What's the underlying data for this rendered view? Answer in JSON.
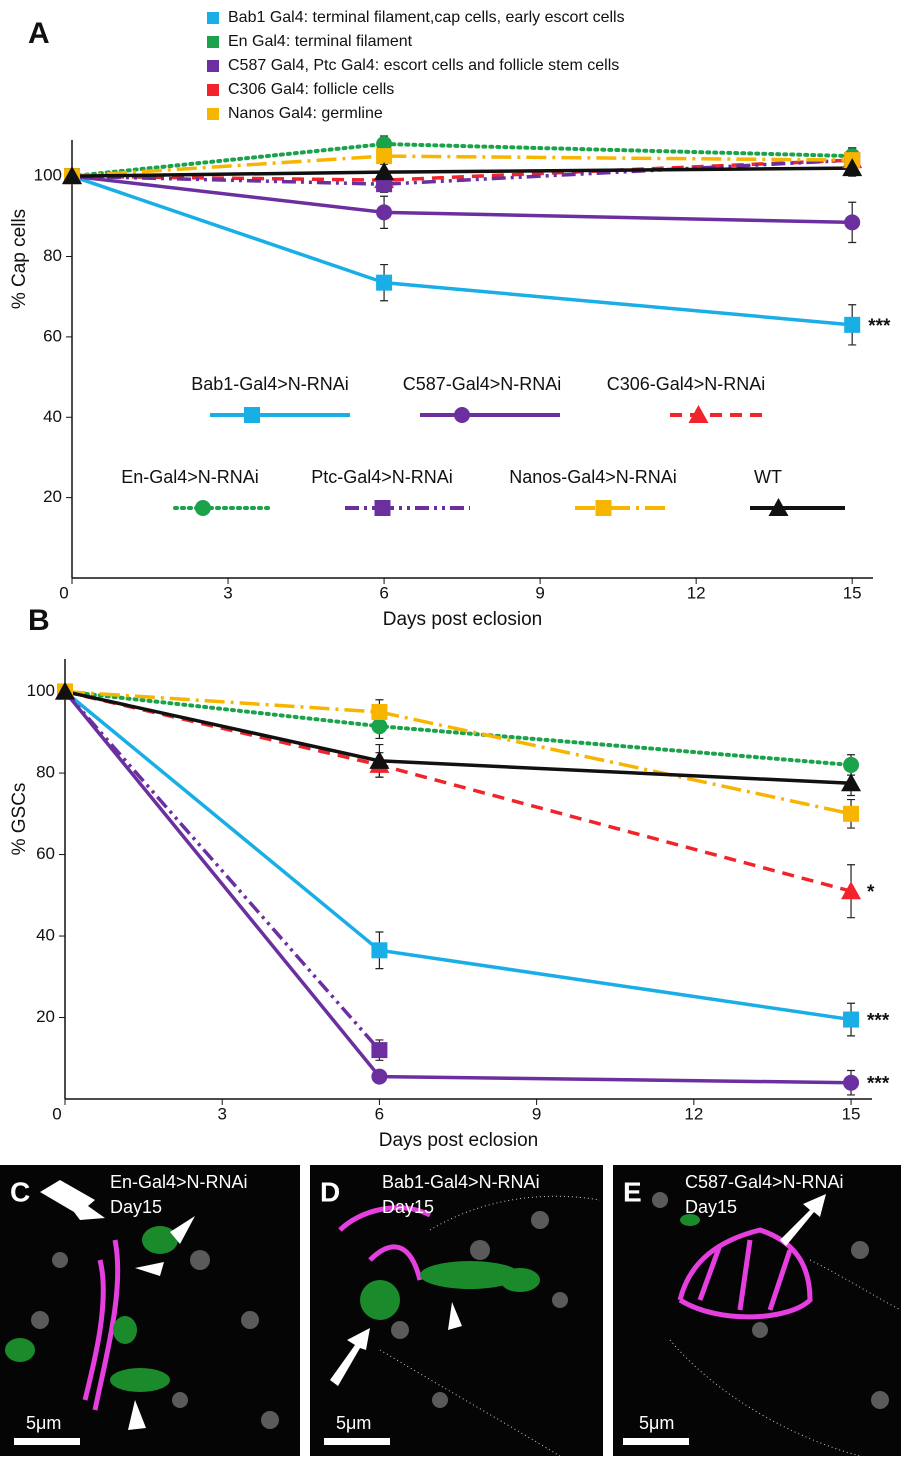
{
  "chart_data": [
    {
      "type": "line",
      "panel_label": "A",
      "xlabel": "Days post eclosion",
      "ylabel": "% Cap cells",
      "x": [
        0,
        6,
        15
      ],
      "xlim": [
        0,
        15.4
      ],
      "xticks": [
        0,
        3,
        6,
        9,
        12,
        15
      ],
      "ylim": [
        0,
        109
      ],
      "yticks": [
        20,
        40,
        60,
        80,
        100
      ],
      "grid": false,
      "legend": "inside",
      "color_key": [
        {
          "label": "Bab1 Gal4: terminal filament,cap cells, early escort cells",
          "color": "#19aee6"
        },
        {
          "label": "En Gal4: terminal filament",
          "color": "#1aa34a"
        },
        {
          "label": "C587 Gal4, Ptc Gal4: escort cells and follicle stem cells",
          "color": "#6b2fa0"
        },
        {
          "label": "C306 Gal4: follicle cells",
          "color": "#f0242a"
        },
        {
          "label": "Nanos Gal4: germline",
          "color": "#f7b500"
        }
      ],
      "series": [
        {
          "name": "Bab1-Gal4>N-RNAi",
          "color": "#19aee6",
          "style": "solid",
          "marker": "square",
          "values": [
            100,
            73.5,
            63
          ],
          "errors": [
            1.5,
            4.5,
            5
          ],
          "annotation": "***"
        },
        {
          "name": "C587-Gal4>N-RNAi",
          "color": "#6b2fa0",
          "style": "solid",
          "marker": "circle",
          "values": [
            100,
            91,
            88.5
          ],
          "errors": [
            1.5,
            4,
            5
          ]
        },
        {
          "name": "C306-Gal4>N-RNAi",
          "color": "#f0242a",
          "style": "dashed",
          "marker": "triangle",
          "values": [
            100,
            99,
            104
          ],
          "errors": [
            1.5,
            2,
            3
          ]
        },
        {
          "name": "En-Gal4>N-RNAi",
          "color": "#1aa34a",
          "style": "dotted",
          "marker": "circle",
          "values": [
            100,
            108,
            105
          ],
          "errors": [
            1.5,
            2,
            2
          ]
        },
        {
          "name": "Ptc-Gal4>N-RNAi",
          "color": "#6b2fa0",
          "style": "dashdotdot",
          "marker": "square",
          "values": [
            100,
            98,
            104
          ],
          "errors": [
            1.5,
            2,
            3
          ]
        },
        {
          "name": "Nanos-Gal4>N-RNAi",
          "color": "#f7b500",
          "style": "dashdot",
          "marker": "square",
          "values": [
            100,
            105,
            104
          ],
          "errors": [
            1.5,
            2,
            2
          ]
        },
        {
          "name": "WT",
          "color": "#111111",
          "style": "solid",
          "marker": "triangle",
          "values": [
            100,
            101,
            102
          ],
          "errors": [
            1.5,
            2,
            2
          ]
        }
      ]
    },
    {
      "type": "line",
      "panel_label": "B",
      "xlabel": "Days post eclosion",
      "ylabel": "% GSCs",
      "x": [
        0,
        6,
        15
      ],
      "xlim": [
        0,
        15.4
      ],
      "xticks": [
        0,
        3,
        6,
        9,
        12,
        15
      ],
      "ylim": [
        0,
        108
      ],
      "yticks": [
        20,
        40,
        60,
        80,
        100
      ],
      "grid": false,
      "legend": false,
      "series": [
        {
          "name": "Bab1-Gal4>N-RNAi",
          "color": "#19aee6",
          "style": "solid",
          "marker": "square",
          "values": [
            100,
            36.5,
            19.5
          ],
          "errors": [
            1.5,
            4.5,
            4
          ],
          "annotation": "***"
        },
        {
          "name": "C587-Gal4>N-RNAi",
          "color": "#6b2fa0",
          "style": "solid",
          "marker": "circle",
          "values": [
            100,
            5.5,
            4
          ],
          "errors": [
            1.5,
            1.5,
            3
          ],
          "annotation": "***"
        },
        {
          "name": "C306-Gal4>N-RNAi",
          "color": "#f0242a",
          "style": "dashed",
          "marker": "triangle",
          "values": [
            100,
            82,
            51
          ],
          "errors": [
            1.5,
            3,
            6.5
          ],
          "annotation": "*"
        },
        {
          "name": "En-Gal4>N-RNAi",
          "color": "#1aa34a",
          "style": "dotted",
          "marker": "circle",
          "values": [
            100,
            91.5,
            82
          ],
          "errors": [
            1.5,
            3,
            2.5
          ]
        },
        {
          "name": "Ptc-Gal4>N-RNAi",
          "color": "#6b2fa0",
          "style": "dashdotdot",
          "marker": "square",
          "values": [
            100,
            12,
            null
          ],
          "errors": [
            1.5,
            2.5,
            null
          ]
        },
        {
          "name": "Nanos-Gal4>N-RNAi",
          "color": "#f7b500",
          "style": "dashdot",
          "marker": "square",
          "values": [
            100,
            95,
            70
          ],
          "errors": [
            1.5,
            3,
            3.5
          ]
        },
        {
          "name": "WT",
          "color": "#111111",
          "style": "solid",
          "marker": "triangle",
          "values": [
            100,
            83,
            77.5
          ],
          "errors": [
            1.5,
            4,
            3
          ]
        }
      ]
    }
  ],
  "panels": [
    {
      "letter": "C",
      "lines": [
        "En-Gal4>N-RNAi",
        "Day15"
      ],
      "scale": "5μm"
    },
    {
      "letter": "D",
      "lines": [
        "Bab1-Gal4>N-RNAi",
        "Day15"
      ],
      "scale": "5μm"
    },
    {
      "letter": "E",
      "lines": [
        "C587-Gal4>N-RNAi",
        "Day15"
      ],
      "scale": "5μm"
    }
  ]
}
